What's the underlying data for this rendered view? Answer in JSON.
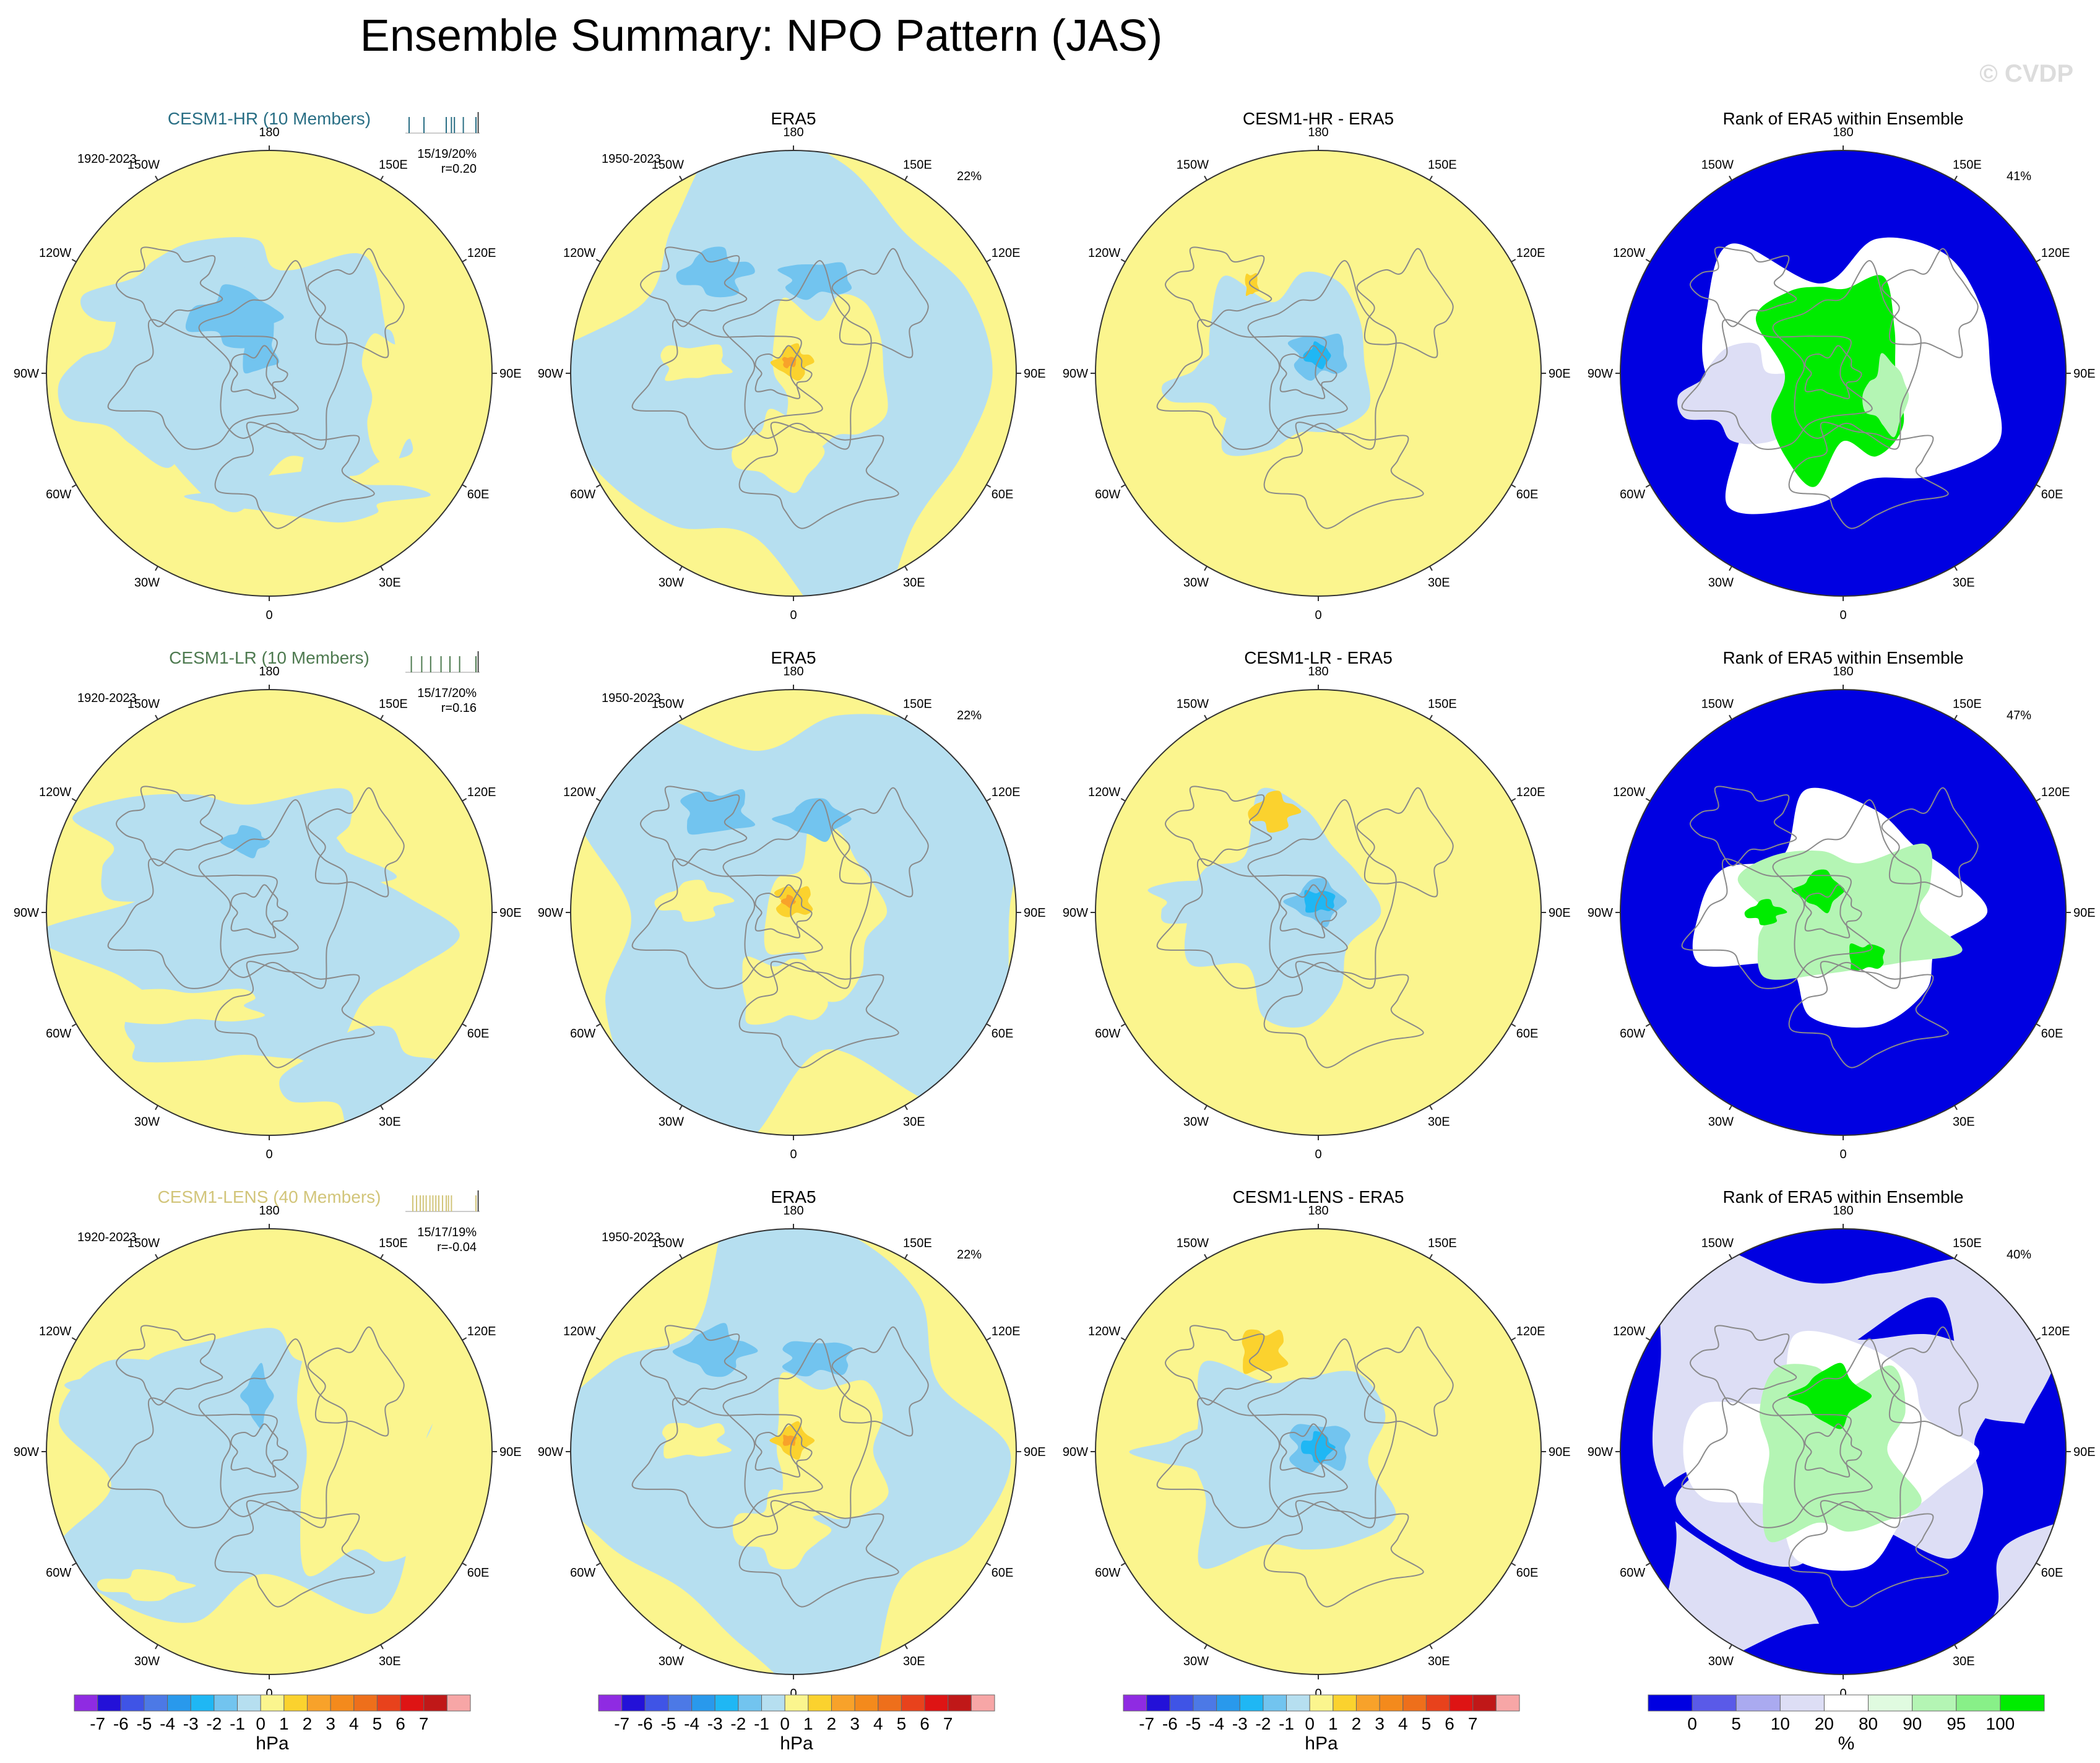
{
  "title": "Ensemble Summary: NPO Pattern (JAS)",
  "watermark": "© CVDP",
  "colors": {
    "pos": "#fbf58e",
    "neg": "#b6dff0",
    "neg2": "#72c4ef",
    "neg3": "#52aee6",
    "neg4": "#1fb7f4",
    "pos2": "#fbd22e",
    "pos3": "#f8a22a",
    "pos4": "#ee6f1b",
    "rank_blue": "#0000e1",
    "rank_lav": "#dddef5",
    "rank_white": "#ffffff",
    "rank_lg": "#b4f5b4",
    "rank_g": "#00ec00",
    "rank_g2": "#58f258",
    "hr_color": "#2a6f85",
    "lr_color": "#4e7a50",
    "lens_color": "#d2c57a"
  },
  "lon_labels": [
    "180",
    "150E",
    "120E",
    "90E",
    "60E",
    "30E",
    "0",
    "30W",
    "60W",
    "90W",
    "120W",
    "150W"
  ],
  "rows": [
    {
      "model": "CESM1-HR (10 Members)",
      "model_color_key": "hr_color",
      "model_period": "1920-2023",
      "stats1": "15/19/20%",
      "stats2": "r=0.20",
      "obs_title": "ERA5",
      "obs_period": "1950-2023",
      "obs_pct": "22%",
      "diff_title": "CESM1-HR - ERA5",
      "rank_title": "Rank of ERA5 within Ensemble",
      "rank_pct": "41%",
      "ticks": [
        0.05,
        0.25,
        0.55,
        0.62,
        0.66,
        0.78,
        0.95
      ]
    },
    {
      "model": "CESM1-LR (10 Members)",
      "model_color_key": "lr_color",
      "model_period": "1920-2023",
      "stats1": "15/17/20%",
      "stats2": "r=0.16",
      "obs_title": "ERA5",
      "obs_period": "1950-2023",
      "obs_pct": "22%",
      "diff_title": "CESM1-LR - ERA5",
      "rank_title": "Rank of ERA5 within Ensemble",
      "rank_pct": "47%",
      "ticks": [
        0.08,
        0.22,
        0.34,
        0.48,
        0.6,
        0.73,
        0.95
      ]
    },
    {
      "model": "CESM1-LENS (40 Members)",
      "model_color_key": "lens_color",
      "model_period": "1920-2023",
      "stats1": "15/17/19%",
      "stats2": "r=-0.04",
      "obs_title": "ERA5",
      "obs_period": "1950-2023",
      "obs_pct": "22%",
      "diff_title": "CESM1-LENS - ERA5",
      "rank_title": "Rank of ERA5 within Ensemble",
      "rank_pct": "40%",
      "ticks": [
        0.1,
        0.15,
        0.2,
        0.24,
        0.28,
        0.33,
        0.37,
        0.41,
        0.45,
        0.5,
        0.55,
        0.58,
        0.62,
        0.95
      ]
    }
  ],
  "colorbars": [
    {
      "labels": [
        "-7",
        "-6",
        "-5",
        "-4",
        "-3",
        "-2",
        "-1",
        "0",
        "1",
        "2",
        "3",
        "4",
        "5",
        "6",
        "7"
      ],
      "colors": [
        "#8f2be2",
        "#2311d8",
        "#3f54e6",
        "#4c79e6",
        "#2999ec",
        "#1fb7f4",
        "#72c4ef",
        "#b6dff0",
        "#fbf58e",
        "#fbd22e",
        "#f8a22a",
        "#f48a1c",
        "#ee6f1b",
        "#e8421c",
        "#de1414",
        "#c01818",
        "#f7a6a6"
      ],
      "unit": "hPa"
    },
    {
      "labels": [
        "-7",
        "-6",
        "-5",
        "-4",
        "-3",
        "-2",
        "-1",
        "0",
        "1",
        "2",
        "3",
        "4",
        "5",
        "6",
        "7"
      ],
      "colors": [
        "#8f2be2",
        "#2311d8",
        "#3f54e6",
        "#4c79e6",
        "#2999ec",
        "#1fb7f4",
        "#72c4ef",
        "#b6dff0",
        "#fbf58e",
        "#fbd22e",
        "#f8a22a",
        "#f48a1c",
        "#ee6f1b",
        "#e8421c",
        "#de1414",
        "#c01818",
        "#f7a6a6"
      ],
      "unit": "hPa"
    },
    {
      "labels": [
        "-7",
        "-6",
        "-5",
        "-4",
        "-3",
        "-2",
        "-1",
        "0",
        "1",
        "2",
        "3",
        "4",
        "5",
        "6",
        "7"
      ],
      "colors": [
        "#8f2be2",
        "#2311d8",
        "#3f54e6",
        "#4c79e6",
        "#2999ec",
        "#1fb7f4",
        "#72c4ef",
        "#b6dff0",
        "#fbf58e",
        "#fbd22e",
        "#f8a22a",
        "#f48a1c",
        "#ee6f1b",
        "#e8421c",
        "#de1414",
        "#c01818",
        "#f7a6a6"
      ],
      "unit": "hPa"
    },
    {
      "labels": [
        "0",
        "5",
        "10",
        "20",
        "80",
        "90",
        "95",
        "100"
      ],
      "colors": [
        "#0000e1",
        "#5a5ae8",
        "#aaaaf0",
        "#dddef5",
        "#ffffff",
        "#e0fbe0",
        "#b4f5b4",
        "#88f088",
        "#00ec00"
      ],
      "unit": "%"
    }
  ],
  "chart_data": [
    {
      "type": "heatmap",
      "title": "Ensemble Summary: NPO Pattern (JAS)",
      "description": "12 polar-stereographic map panels (3 rows x 4 columns) of NPO sea-level pressure pattern; columns: model ensemble mean, ERA5, model minus ERA5, rank of ERA5 within ensemble",
      "pressure_levels_hPa": [
        -7,
        -6,
        -5,
        -4,
        -3,
        -2,
        -1,
        0,
        1,
        2,
        3,
        4,
        5,
        6,
        7
      ],
      "rank_levels_pct": [
        0,
        5,
        10,
        20,
        80,
        90,
        95,
        100
      ],
      "pattern_correlations": {
        "CESM1-HR": 0.2,
        "CESM1-LR": 0.16,
        "CESM1-LENS": -0.04
      },
      "pct_variance_explained": {
        "CESM1-HR": "15/19/20%",
        "CESM1-LR": "15/17/20%",
        "CESM1-LENS": "15/17/19%",
        "ERA5": "22%"
      },
      "rank_pct": {
        "CESM1-HR": "41%",
        "CESM1-LR": "47%",
        "CESM1-LENS": "40%"
      }
    }
  ]
}
